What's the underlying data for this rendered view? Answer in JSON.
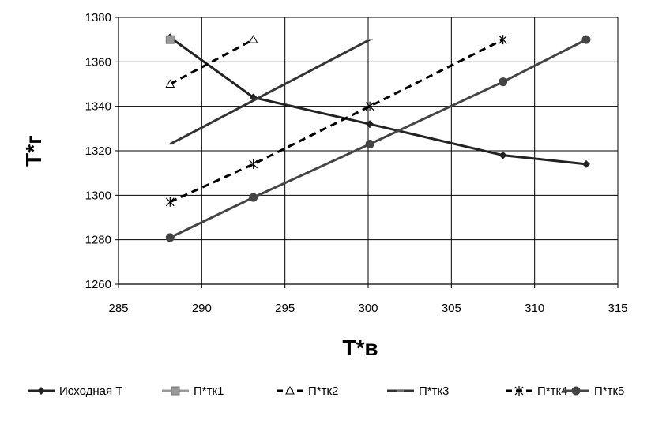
{
  "chart_data": {
    "type": "line",
    "xlabel": "T*в",
    "ylabel": "T*г",
    "xlim": [
      285,
      315
    ],
    "ylim": [
      1260,
      1380
    ],
    "x_ticks": [
      285,
      290,
      295,
      300,
      305,
      310,
      315
    ],
    "y_ticks": [
      1260,
      1280,
      1300,
      1320,
      1340,
      1360,
      1380
    ],
    "grid": true,
    "legend_position": "bottom",
    "series": [
      {
        "name": "Исходная T",
        "color": "#222222",
        "dash": false,
        "marker": "diamond",
        "points": [
          [
            288.1,
            1371
          ],
          [
            293.1,
            1344
          ],
          [
            300.1,
            1332
          ],
          [
            308.1,
            1318
          ],
          [
            313.1,
            1314
          ]
        ]
      },
      {
        "name": "П*тк1",
        "color": "#999999",
        "dash": false,
        "marker": "square",
        "points": [
          [
            288.1,
            1370
          ]
        ]
      },
      {
        "name": "П*тк2",
        "color": "#000000",
        "dash": true,
        "marker": "triangle",
        "points": [
          [
            288.1,
            1350
          ],
          [
            293.1,
            1370
          ]
        ]
      },
      {
        "name": "П*тк3",
        "color": "#333333",
        "dash": false,
        "marker": "cross",
        "points": [
          [
            288.1,
            1323
          ],
          [
            300.1,
            1370
          ]
        ]
      },
      {
        "name": "П*тк4",
        "color": "#000000",
        "dash": true,
        "marker": "asterisk",
        "points": [
          [
            288.1,
            1297
          ],
          [
            293.1,
            1314
          ],
          [
            300.1,
            1340
          ],
          [
            308.1,
            1370
          ]
        ]
      },
      {
        "name": "П*тк5",
        "color": "#444444",
        "dash": false,
        "marker": "circle",
        "points": [
          [
            288.1,
            1281
          ],
          [
            293.1,
            1299
          ],
          [
            300.1,
            1323
          ],
          [
            308.1,
            1351
          ],
          [
            313.1,
            1370
          ]
        ]
      }
    ]
  }
}
